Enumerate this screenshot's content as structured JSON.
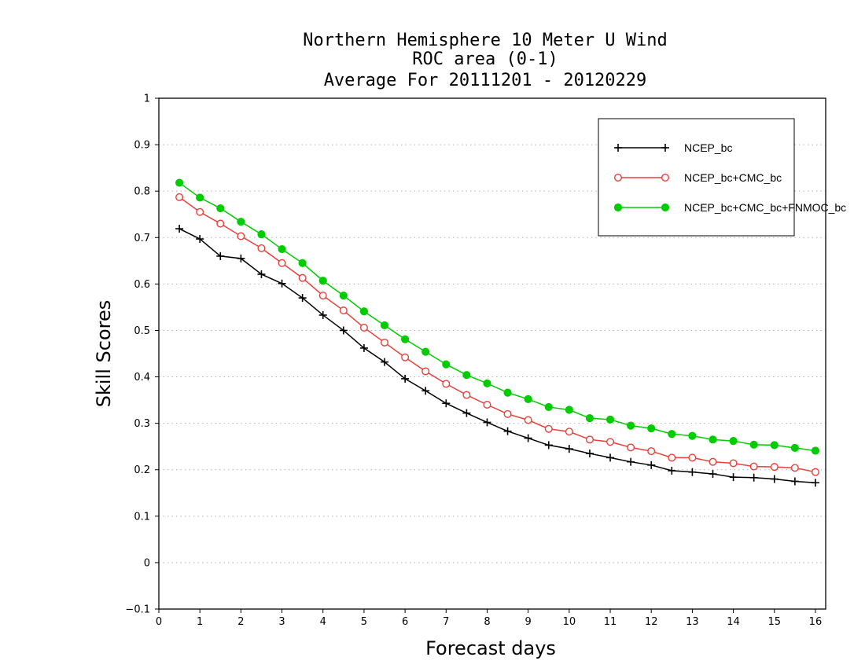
{
  "chart_data": {
    "type": "line",
    "title": [
      "Northern Hemisphere 10 Meter U Wind",
      "ROC area (0-1)",
      "Average For 20111201 - 20120229"
    ],
    "xlabel": "Forecast days",
    "ylabel": "Skill Scores",
    "xlim": [
      0,
      16.25
    ],
    "ylim": [
      -0.1,
      1
    ],
    "xticks": [
      "0",
      "1",
      "2",
      "3",
      "4",
      "5",
      "6",
      "7",
      "8",
      "9",
      "10",
      "11",
      "12",
      "13",
      "14",
      "15",
      "16"
    ],
    "yticks": [
      "−0.1",
      "0",
      "0.1",
      "0.2",
      "0.3",
      "0.4",
      "0.5",
      "0.6",
      "0.7",
      "0.8",
      "0.9",
      "1"
    ],
    "grid": true,
    "legend_position": "top-right",
    "x": [
      0.5,
      1,
      1.5,
      2,
      2.5,
      3,
      3.5,
      4,
      4.5,
      5,
      5.5,
      6,
      6.5,
      7,
      7.5,
      8,
      8.5,
      9,
      9.5,
      10,
      10.5,
      11,
      11.5,
      12,
      12.5,
      13,
      13.5,
      14,
      14.5,
      15,
      15.5,
      16
    ],
    "series": [
      {
        "name": "NCEP_bc",
        "color": "#000000",
        "marker": "plus",
        "values": [
          0.719,
          0.697,
          0.66,
          0.655,
          0.621,
          0.601,
          0.57,
          0.533,
          0.5,
          0.462,
          0.432,
          0.396,
          0.37,
          0.343,
          0.322,
          0.302,
          0.283,
          0.268,
          0.253,
          0.245,
          0.235,
          0.226,
          0.217,
          0.21,
          0.198,
          0.195,
          0.191,
          0.184,
          0.183,
          0.18,
          0.175,
          0.172
        ]
      },
      {
        "name": "NCEP_bc+CMC_bc",
        "color": "#e8403a",
        "marker": "circle-open",
        "values": [
          0.787,
          0.755,
          0.73,
          0.703,
          0.677,
          0.645,
          0.613,
          0.575,
          0.543,
          0.506,
          0.474,
          0.442,
          0.412,
          0.385,
          0.361,
          0.34,
          0.32,
          0.307,
          0.288,
          0.282,
          0.265,
          0.26,
          0.248,
          0.24,
          0.226,
          0.226,
          0.217,
          0.214,
          0.207,
          0.206,
          0.204,
          0.195
        ]
      },
      {
        "name": "NCEP_bc+CMC_bc+FNMOC_bc",
        "color": "#00cc00",
        "marker": "circle-filled",
        "values": [
          0.818,
          0.786,
          0.763,
          0.734,
          0.707,
          0.675,
          0.645,
          0.607,
          0.575,
          0.541,
          0.511,
          0.481,
          0.454,
          0.427,
          0.404,
          0.386,
          0.366,
          0.352,
          0.335,
          0.329,
          0.311,
          0.308,
          0.295,
          0.289,
          0.277,
          0.273,
          0.265,
          0.262,
          0.254,
          0.253,
          0.247,
          0.241
        ]
      }
    ]
  }
}
